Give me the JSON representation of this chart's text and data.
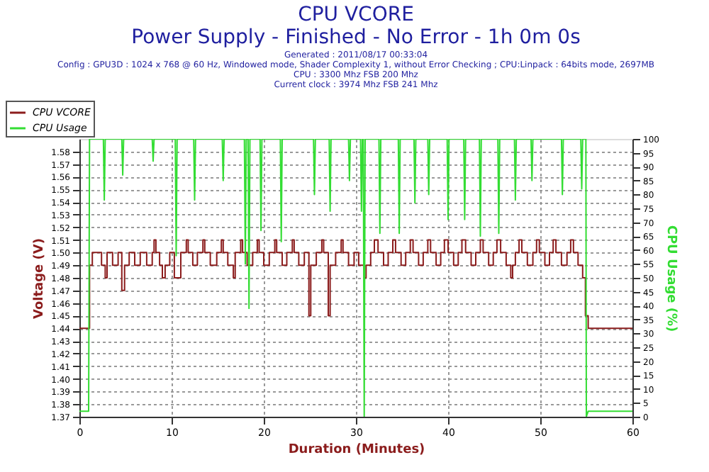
{
  "chart_data": {
    "type": "line",
    "title": "CPU VCORE",
    "subtitle": "Power Supply - Finished - No Error - 1h 0m 0s",
    "annotations": [
      "Generated : 2011/08/17 00:33:04",
      "Config : GPU3D : 1024 x 768 @ 60 Hz, Windowed mode, Shader Complexity 1, without Error Checking ; CPU:Linpack : 64bits mode, 2697MB",
      "CPU : 3300 Mhz FSB 200 Mhz",
      "Current clock : 3974 Mhz FSB 241 Mhz"
    ],
    "xlabel": "Duration (Minutes)",
    "ylabel": "Voltage (V)",
    "y2label": "CPU Usage (%)",
    "xlim": [
      0,
      60
    ],
    "xticks": [
      0,
      10,
      20,
      30,
      40,
      50,
      60
    ],
    "ylim": [
      1.37,
      1.59
    ],
    "yticks": [
      1.37,
      1.38,
      1.39,
      {
        "value": 1.4,
        "label": "1.40"
      },
      1.41,
      1.42,
      1.43,
      1.44,
      1.45,
      1.46,
      1.47,
      1.48,
      1.49,
      {
        "value": 1.5,
        "label": "1.50"
      },
      1.51,
      1.52,
      1.53,
      1.54,
      1.55,
      1.56,
      1.57,
      1.58
    ],
    "y2lim": [
      0,
      100
    ],
    "y2ticks": [
      0,
      5,
      10,
      15,
      20,
      25,
      30,
      35,
      40,
      45,
      50,
      55,
      60,
      65,
      70,
      75,
      80,
      85,
      90,
      95,
      100
    ],
    "grid": true,
    "legend": "top left",
    "line_style": "solid",
    "series": [
      {
        "name": "CPU VCORE",
        "type": "step",
        "color": "#8b1c1c",
        "x": [
          0,
          1.1,
          1.4,
          2.4,
          2.8,
          3.0,
          3.6,
          4.2,
          4.6,
          4.9,
          5.4,
          6.0,
          6.6,
          7.3,
          7.9,
          8.1,
          8.3,
          8.7,
          9.0,
          9.3,
          9.8,
          10.3,
          11.0,
          11.6,
          11.8,
          12.3,
          12.8,
          13.4,
          13.6,
          14.2,
          14.9,
          15.4,
          15.6,
          16.1,
          16.7,
          16.9,
          17.5,
          17.7,
          18.2,
          18.8,
          19.3,
          19.5,
          20.0,
          20.6,
          21.2,
          21.4,
          22.0,
          22.5,
          23.1,
          23.3,
          23.8,
          24.4,
          24.9,
          25.1,
          25.7,
          26.3,
          26.5,
          27.0,
          27.2,
          27.8,
          28.4,
          28.6,
          29.2,
          29.8,
          30.3,
          30.9,
          31.1,
          31.6,
          32.0,
          32.4,
          33.0,
          33.5,
          34.0,
          34.3,
          34.9,
          35.4,
          35.9,
          36.2,
          36.8,
          37.3,
          37.8,
          38.1,
          38.7,
          39.2,
          39.6,
          40.0,
          40.6,
          41.1,
          41.5,
          41.9,
          42.5,
          43.0,
          43.5,
          43.8,
          44.4,
          44.9,
          45.3,
          45.7,
          46.3,
          46.8,
          47.0,
          47.3,
          47.7,
          48.0,
          48.6,
          49.2,
          49.6,
          49.9,
          50.5,
          51.0,
          51.4,
          51.7,
          52.3,
          52.9,
          53.3,
          53.6,
          54.1,
          54.6,
          54.9,
          55.2,
          60
        ],
        "values": [
          1.44,
          1.49,
          1.5,
          1.49,
          1.48,
          1.5,
          1.49,
          1.5,
          1.47,
          1.49,
          1.5,
          1.49,
          1.5,
          1.49,
          1.5,
          1.51,
          1.5,
          1.49,
          1.48,
          1.49,
          1.5,
          1.48,
          1.5,
          1.51,
          1.5,
          1.49,
          1.5,
          1.51,
          1.5,
          1.49,
          1.5,
          1.51,
          1.5,
          1.49,
          1.48,
          1.5,
          1.51,
          1.5,
          1.49,
          1.5,
          1.51,
          1.5,
          1.49,
          1.5,
          1.51,
          1.5,
          1.49,
          1.5,
          1.51,
          1.5,
          1.49,
          1.5,
          1.45,
          1.49,
          1.5,
          1.51,
          1.5,
          1.45,
          1.49,
          1.5,
          1.51,
          1.5,
          1.49,
          1.5,
          1.49,
          1.48,
          1.49,
          1.5,
          1.51,
          1.5,
          1.49,
          1.5,
          1.51,
          1.5,
          1.49,
          1.5,
          1.51,
          1.5,
          1.49,
          1.5,
          1.51,
          1.5,
          1.49,
          1.5,
          1.51,
          1.5,
          1.49,
          1.5,
          1.51,
          1.5,
          1.49,
          1.5,
          1.51,
          1.5,
          1.49,
          1.5,
          1.51,
          1.5,
          1.49,
          1.48,
          1.49,
          1.5,
          1.51,
          1.5,
          1.49,
          1.5,
          1.51,
          1.5,
          1.49,
          1.5,
          1.51,
          1.5,
          1.49,
          1.5,
          1.51,
          1.5,
          1.49,
          1.48,
          1.45,
          1.44,
          1.44
        ]
      },
      {
        "name": "CPU Usage",
        "type": "line",
        "axis": "y2",
        "color": "#33dd33",
        "x": [
          0,
          1.0,
          1.1,
          2.6,
          2.7,
          2.8,
          4.6,
          4.7,
          4.8,
          7.9,
          8.0,
          8.1,
          10.4,
          10.5,
          10.6,
          12.4,
          12.5,
          12.6,
          15.5,
          15.6,
          15.7,
          17.9,
          18.0,
          18.1,
          18.3,
          18.4,
          18.5,
          19.6,
          19.7,
          19.8,
          21.8,
          21.9,
          22.0,
          25.4,
          25.5,
          25.6,
          27.1,
          27.2,
          27.3,
          29.2,
          29.3,
          29.4,
          30.5,
          30.6,
          30.7,
          30.8,
          30.9,
          31.0,
          32.5,
          32.6,
          32.7,
          34.6,
          34.7,
          34.8,
          36.3,
          36.4,
          36.5,
          37.8,
          37.9,
          38.0,
          39.9,
          40.0,
          40.1,
          41.7,
          41.8,
          41.9,
          43.4,
          43.5,
          43.6,
          45.4,
          45.5,
          45.6,
          47.2,
          47.3,
          47.4,
          49.0,
          49.1,
          49.2,
          52.3,
          52.4,
          52.5,
          54.4,
          54.5,
          54.6,
          54.95,
          55.0,
          55.2,
          60
        ],
        "values": [
          2,
          2,
          100,
          100,
          78,
          100,
          100,
          87,
          100,
          100,
          92,
          100,
          100,
          58,
          100,
          100,
          78,
          100,
          100,
          85,
          100,
          100,
          55,
          100,
          100,
          39,
          100,
          100,
          67,
          100,
          100,
          63,
          100,
          100,
          80,
          100,
          100,
          74,
          100,
          100,
          85,
          100,
          100,
          74,
          100,
          100,
          0,
          100,
          100,
          66,
          100,
          100,
          66,
          100,
          100,
          77,
          100,
          100,
          80,
          100,
          100,
          71,
          100,
          100,
          71,
          100,
          100,
          65,
          100,
          100,
          66,
          100,
          100,
          78,
          100,
          100,
          85,
          100,
          100,
          80,
          100,
          100,
          82,
          100,
          100,
          0,
          2,
          2
        ]
      }
    ]
  }
}
